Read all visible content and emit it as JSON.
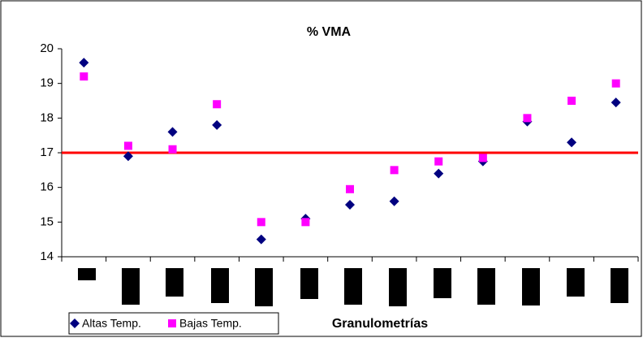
{
  "chart_data": {
    "type": "scatter",
    "title": "% VMA",
    "x_label": "Granulometrías",
    "categories": [
      null,
      null,
      null,
      null,
      null,
      null,
      null,
      null,
      null,
      null,
      null,
      null,
      null
    ],
    "series": [
      {
        "name": "Altas Temp.",
        "color": "#000080",
        "marker": "diamond",
        "values": [
          19.6,
          16.9,
          17.6,
          17.8,
          14.5,
          15.1,
          15.5,
          15.6,
          16.4,
          16.75,
          17.9,
          17.3,
          18.45
        ]
      },
      {
        "name": "Bajas Temp.",
        "color": "#ff00ff",
        "marker": "square",
        "values": [
          19.2,
          17.2,
          17.1,
          18.4,
          15.0,
          15.0,
          15.95,
          16.5,
          16.75,
          16.85,
          18.0,
          18.5,
          19.0
        ]
      }
    ],
    "reference_line": 17,
    "reference_color": "#ff0000",
    "ylim": [
      14,
      20
    ],
    "yticks": [
      14,
      15,
      16,
      17,
      18,
      19,
      20
    ],
    "grid": false,
    "legend": "bottom-left"
  }
}
